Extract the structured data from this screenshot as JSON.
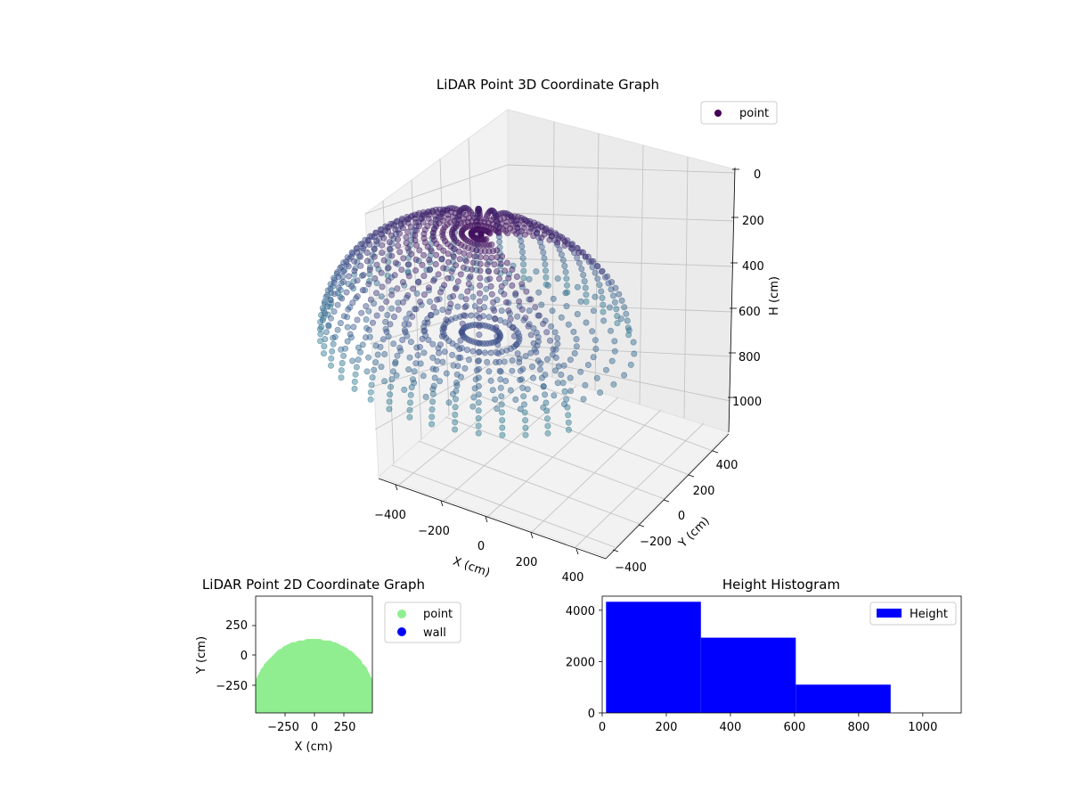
{
  "chart_data": [
    {
      "type": "scatter",
      "projection": "3d",
      "title": "LiDAR Point 3D Coordinate Graph",
      "xlabel": "X (cm)",
      "ylabel": "Y (cm)",
      "zlabel": "H (cm)",
      "xticks": [
        -400,
        -200,
        0,
        200,
        400
      ],
      "yticks": [
        -400,
        -200,
        0,
        200,
        400
      ],
      "zticks": [
        0,
        200,
        400,
        600,
        800,
        1000
      ],
      "xlim": [
        -500,
        500
      ],
      "ylim": [
        -500,
        500
      ],
      "zlim": [
        1100,
        0
      ],
      "zaxis_inverted": true,
      "legend": {
        "entries": [
          "point"
        ],
        "placement": "top-right"
      },
      "grid": true,
      "colormap": "viridis (dark purple to blue by height)",
      "point_color": "#440154",
      "series": [
        {
          "name": "point",
          "shape": "hemispherical dome of scan lines radiating from a center",
          "x_range": [
            -500,
            500
          ],
          "y_range": [
            -500,
            500
          ],
          "h_range": [
            0,
            1000
          ]
        }
      ]
    },
    {
      "type": "scatter",
      "title": "LiDAR Point 2D Coordinate Graph",
      "xlabel": "X (cm)",
      "ylabel": "Y (cm)",
      "xticks": [
        -250,
        0,
        250
      ],
      "yticks": [
        -250,
        0,
        250
      ],
      "xlim": [
        -500,
        500
      ],
      "ylim": [
        -500,
        500
      ],
      "legend": {
        "entries": [
          "point",
          "wall"
        ],
        "placement": "right-outside"
      },
      "series": [
        {
          "name": "point",
          "color": "#90ee90",
          "shape": "filled half-disc, top near y=90, base at y=-500"
        },
        {
          "name": "wall",
          "color": "#0000ff",
          "shape": "no visible points"
        }
      ]
    },
    {
      "type": "bar",
      "subtype": "histogram",
      "title": "Height Histogram",
      "xlabel": "",
      "ylabel": "",
      "xticks": [
        0,
        200,
        400,
        600,
        800,
        1000
      ],
      "yticks": [
        0,
        2000,
        4000
      ],
      "xlim": [
        0,
        1120
      ],
      "ylim": [
        0,
        4550
      ],
      "bin_edges": [
        12,
        308,
        604,
        900
      ],
      "values": [
        4330,
        2930,
        1100
      ],
      "color": "#0000ff",
      "legend": {
        "entries": [
          "Height"
        ],
        "placement": "top-right"
      }
    }
  ]
}
